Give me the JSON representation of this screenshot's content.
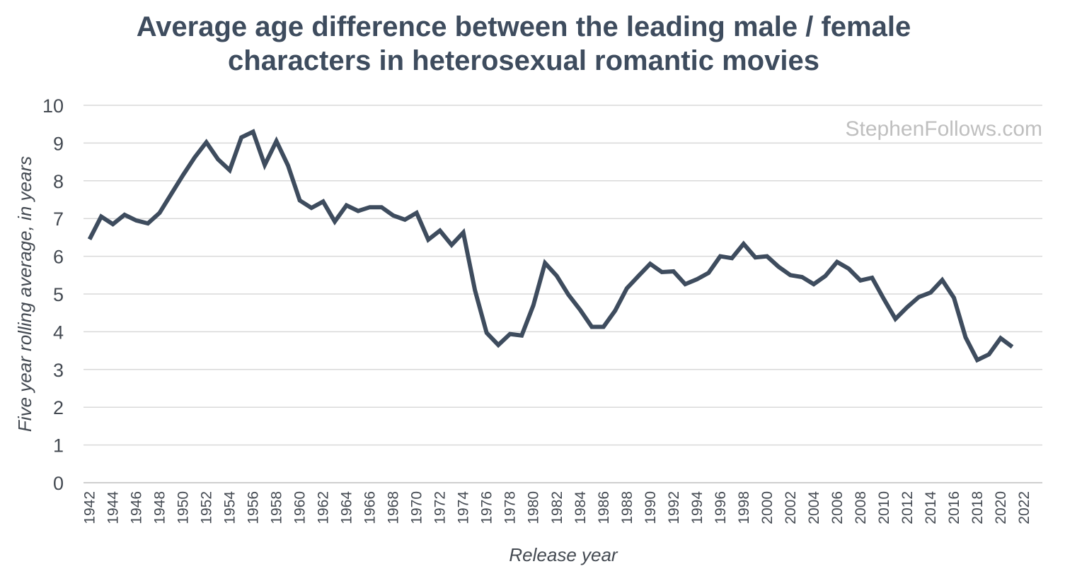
{
  "chart_data": {
    "type": "line",
    "title": [
      "Average age difference between the leading male / female",
      "characters in heterosexual romantic movies"
    ],
    "xlabel": "Release year",
    "ylabel": "Five year rolling average, in years",
    "watermark": "StephenFollows.com",
    "ylim": [
      0,
      10
    ],
    "xlim": [
      1942,
      2022
    ],
    "grid": true,
    "legend": "none",
    "line_color": "#3e4c5e",
    "yticks": [
      "0",
      "1",
      "2",
      "3",
      "4",
      "5",
      "6",
      "7",
      "8",
      "9",
      "10"
    ],
    "xticks": [
      "1942",
      "1944",
      "1946",
      "1948",
      "1950",
      "1952",
      "1954",
      "1956",
      "1958",
      "1960",
      "1962",
      "1964",
      "1966",
      "1968",
      "1970",
      "1972",
      "1974",
      "1976",
      "1978",
      "1980",
      "1982",
      "1984",
      "1986",
      "1988",
      "1990",
      "1992",
      "1994",
      "1996",
      "1998",
      "2000",
      "2002",
      "2004",
      "2006",
      "2008",
      "2010",
      "2012",
      "2014",
      "2016",
      "2018",
      "2020",
      "2022"
    ],
    "series": [
      {
        "x": [
          1942,
          1943,
          1944,
          1945,
          1946,
          1947,
          1948,
          1949,
          1950,
          1951,
          1952,
          1953,
          1954,
          1955,
          1956,
          1957,
          1958,
          1959,
          1960,
          1961,
          1962,
          1963,
          1964,
          1965,
          1966,
          1967,
          1968,
          1969,
          1970,
          1971,
          1972,
          1973,
          1974,
          1975,
          1976,
          1977,
          1978,
          1979,
          1980,
          1981,
          1982,
          1983,
          1984,
          1985,
          1986,
          1987,
          1988,
          1989,
          1990,
          1991,
          1992,
          1993,
          1994,
          1995,
          1996,
          1997,
          1998,
          1999,
          2000,
          2001,
          2002,
          2003,
          2004,
          2005,
          2006,
          2007,
          2008,
          2009,
          2010,
          2011,
          2012,
          2013,
          2014,
          2015,
          2016,
          2017,
          2018,
          2019,
          2020,
          2021
        ],
        "y": [
          6.45,
          7.05,
          6.85,
          7.1,
          6.95,
          6.87,
          7.15,
          7.65,
          8.15,
          8.62,
          9.02,
          8.57,
          8.28,
          9.15,
          9.3,
          8.42,
          9.05,
          8.4,
          7.48,
          7.28,
          7.45,
          6.92,
          7.35,
          7.2,
          7.3,
          7.3,
          7.08,
          6.97,
          7.15,
          6.44,
          6.68,
          6.3,
          6.63,
          5.1,
          3.97,
          3.65,
          3.94,
          3.9,
          4.7,
          5.82,
          5.48,
          4.98,
          4.58,
          4.13,
          4.13,
          4.56,
          5.15,
          5.48,
          5.8,
          5.58,
          5.6,
          5.26,
          5.39,
          5.56,
          6.0,
          5.95,
          6.33,
          5.97,
          6.0,
          5.72,
          5.5,
          5.45,
          5.26,
          5.48,
          5.85,
          5.67,
          5.36,
          5.43,
          4.87,
          4.34,
          4.65,
          4.92,
          5.04,
          5.37,
          4.9,
          3.85,
          3.25,
          3.4,
          3.83,
          3.6
        ]
      }
    ]
  }
}
